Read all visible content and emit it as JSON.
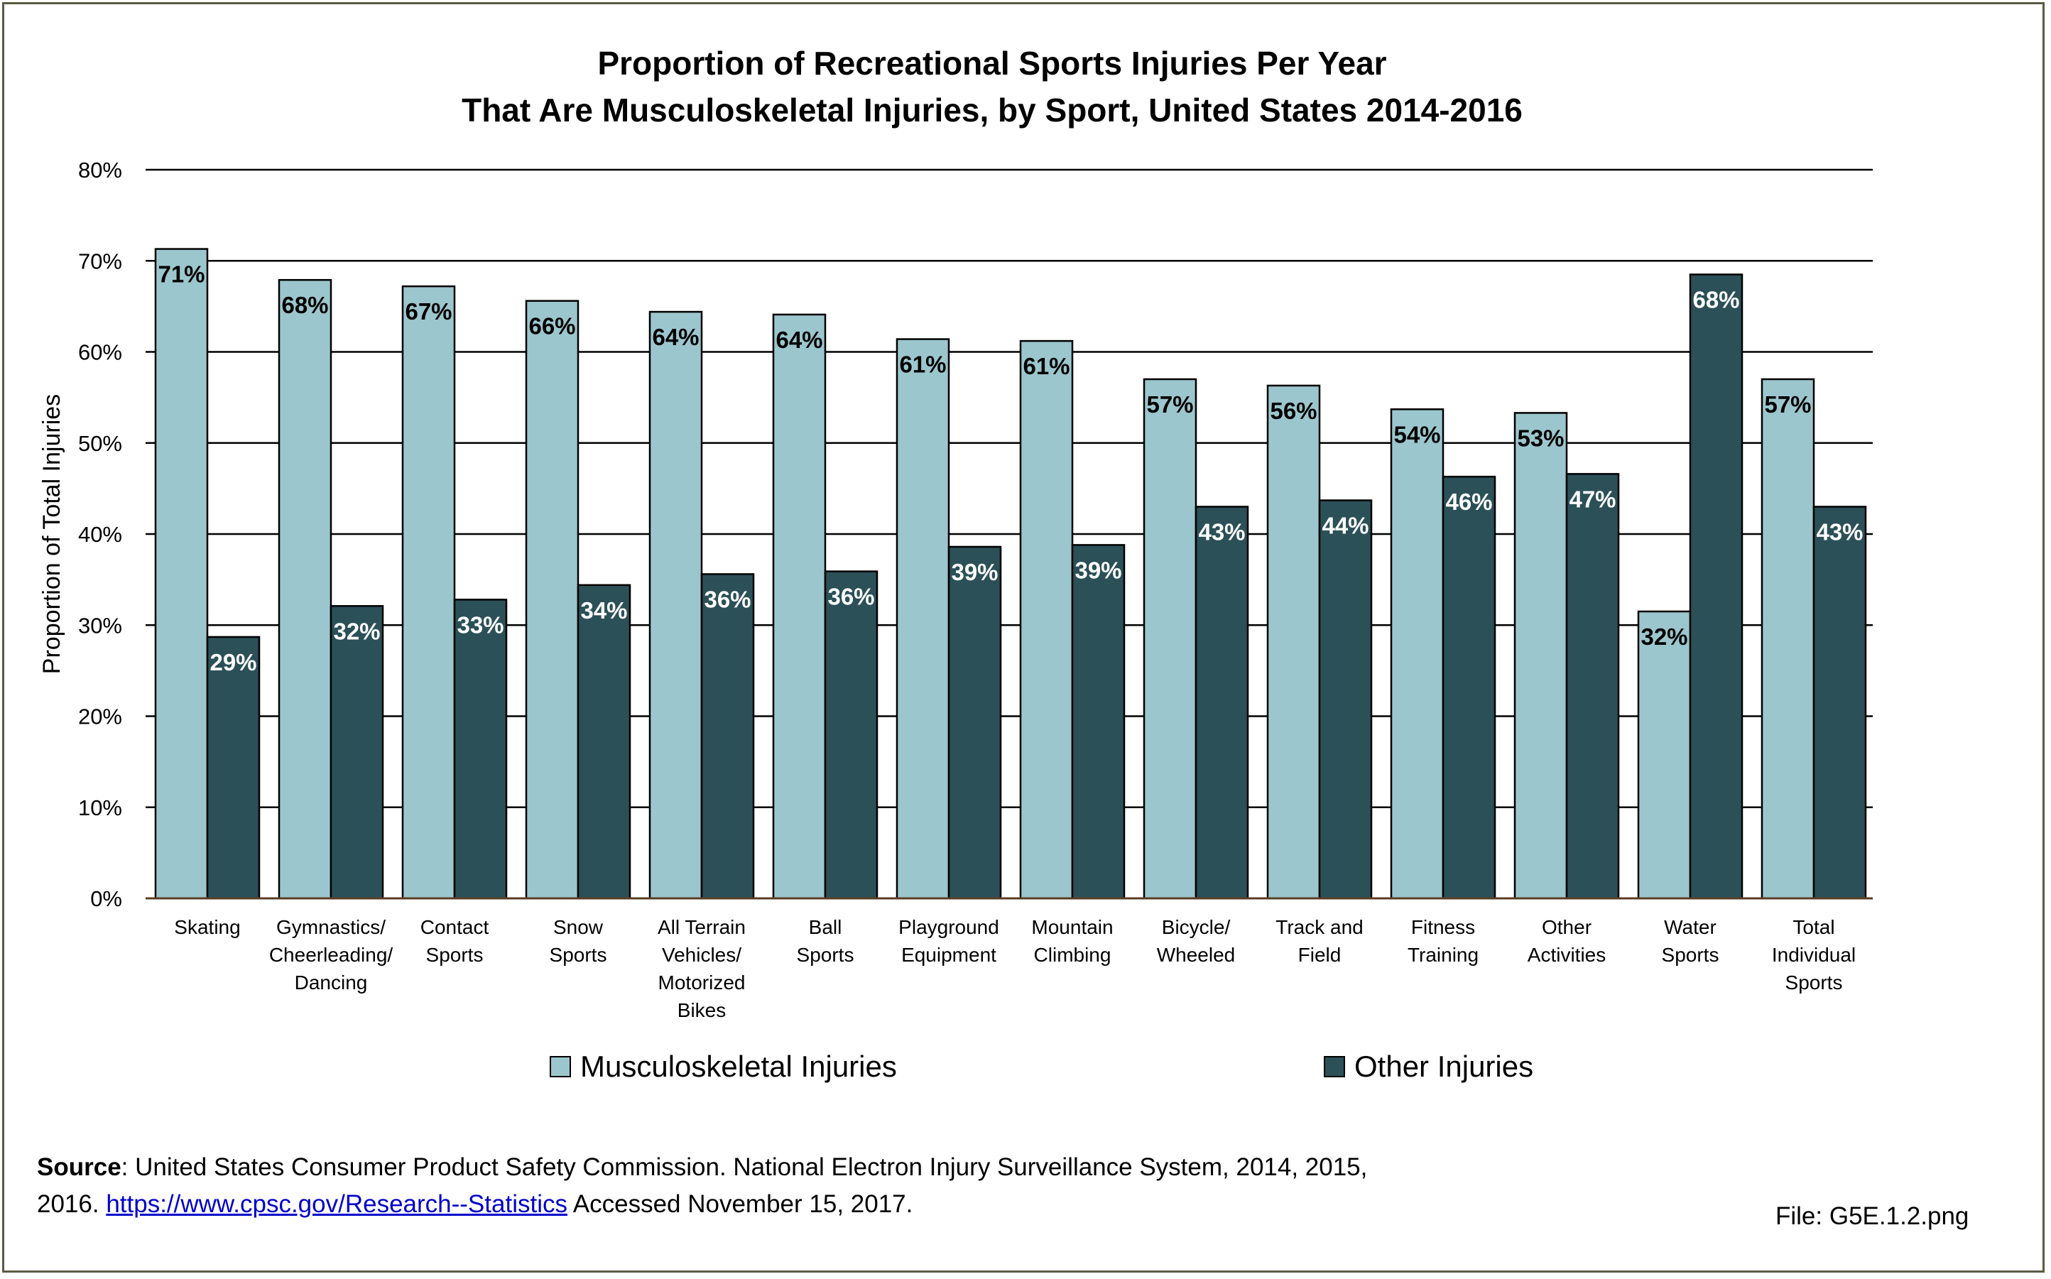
{
  "colors": {
    "musculoskeletal": "#9cc6cd",
    "other": "#2b5058",
    "gridline": "#000000",
    "border": "#5b5b45"
  },
  "chart_data": {
    "type": "bar",
    "title_lines": [
      "Proportion of Recreational Sports Injuries Per Year",
      "That Are Musculoskeletal Injuries, by Sport, United States 2014-2016"
    ],
    "ylabel": "Proportion of Total Injuries",
    "xlabel": "",
    "ylim": [
      0,
      80
    ],
    "yticks": [
      "0%",
      "10%",
      "20%",
      "30%",
      "40%",
      "50%",
      "60%",
      "70%",
      "80%"
    ],
    "grid": true,
    "legend_position": "bottom",
    "categories": [
      [
        "Skating"
      ],
      [
        "Gymnastics/",
        "Cheerleading/",
        "Dancing"
      ],
      [
        "Contact",
        "Sports"
      ],
      [
        "Snow",
        "Sports"
      ],
      [
        "All Terrain",
        "Vehicles/",
        "Motorized",
        "Bikes"
      ],
      [
        "Ball",
        "Sports"
      ],
      [
        "Playground",
        "Equipment"
      ],
      [
        "Mountain",
        "Climbing"
      ],
      [
        "Bicycle/",
        "Wheeled"
      ],
      [
        "Track and",
        "Field"
      ],
      [
        "Fitness",
        "Training"
      ],
      [
        "Other",
        "Activities"
      ],
      [
        "Water",
        "Sports"
      ],
      [
        "Total",
        "Individual",
        "Sports"
      ]
    ],
    "series": [
      {
        "name": "Musculoskeletal Injuries",
        "values": [
          71.3,
          67.9,
          67.2,
          65.6,
          64.4,
          64.1,
          61.4,
          61.2,
          57.0,
          56.3,
          53.7,
          53.3,
          31.5,
          57.0
        ],
        "labels": [
          "71%",
          "68%",
          "67%",
          "66%",
          "64%",
          "64%",
          "61%",
          "61%",
          "57%",
          "56%",
          "54%",
          "53%",
          "32%",
          "57%"
        ]
      },
      {
        "name": "Other Injuries",
        "values": [
          28.7,
          32.1,
          32.8,
          34.4,
          35.6,
          35.9,
          38.6,
          38.8,
          43.0,
          43.7,
          46.3,
          46.6,
          68.5,
          43.0
        ],
        "labels": [
          "29%",
          "32%",
          "33%",
          "34%",
          "36%",
          "36%",
          "39%",
          "39%",
          "43%",
          "44%",
          "46%",
          "47%",
          "68%",
          "43%"
        ]
      }
    ]
  },
  "source": {
    "label": "Source",
    "text_line1": ": United States Consumer Product Safety Commission. National Electron Injury Surveillance System, 2014, 2015,",
    "text_line2_prefix": "2016. ",
    "link": "https://www.cpsc.gov/Research--Statistics",
    "text_line2_suffix": "   Accessed November 15, 2017."
  },
  "file_note": "File: G5E.1.2.png"
}
